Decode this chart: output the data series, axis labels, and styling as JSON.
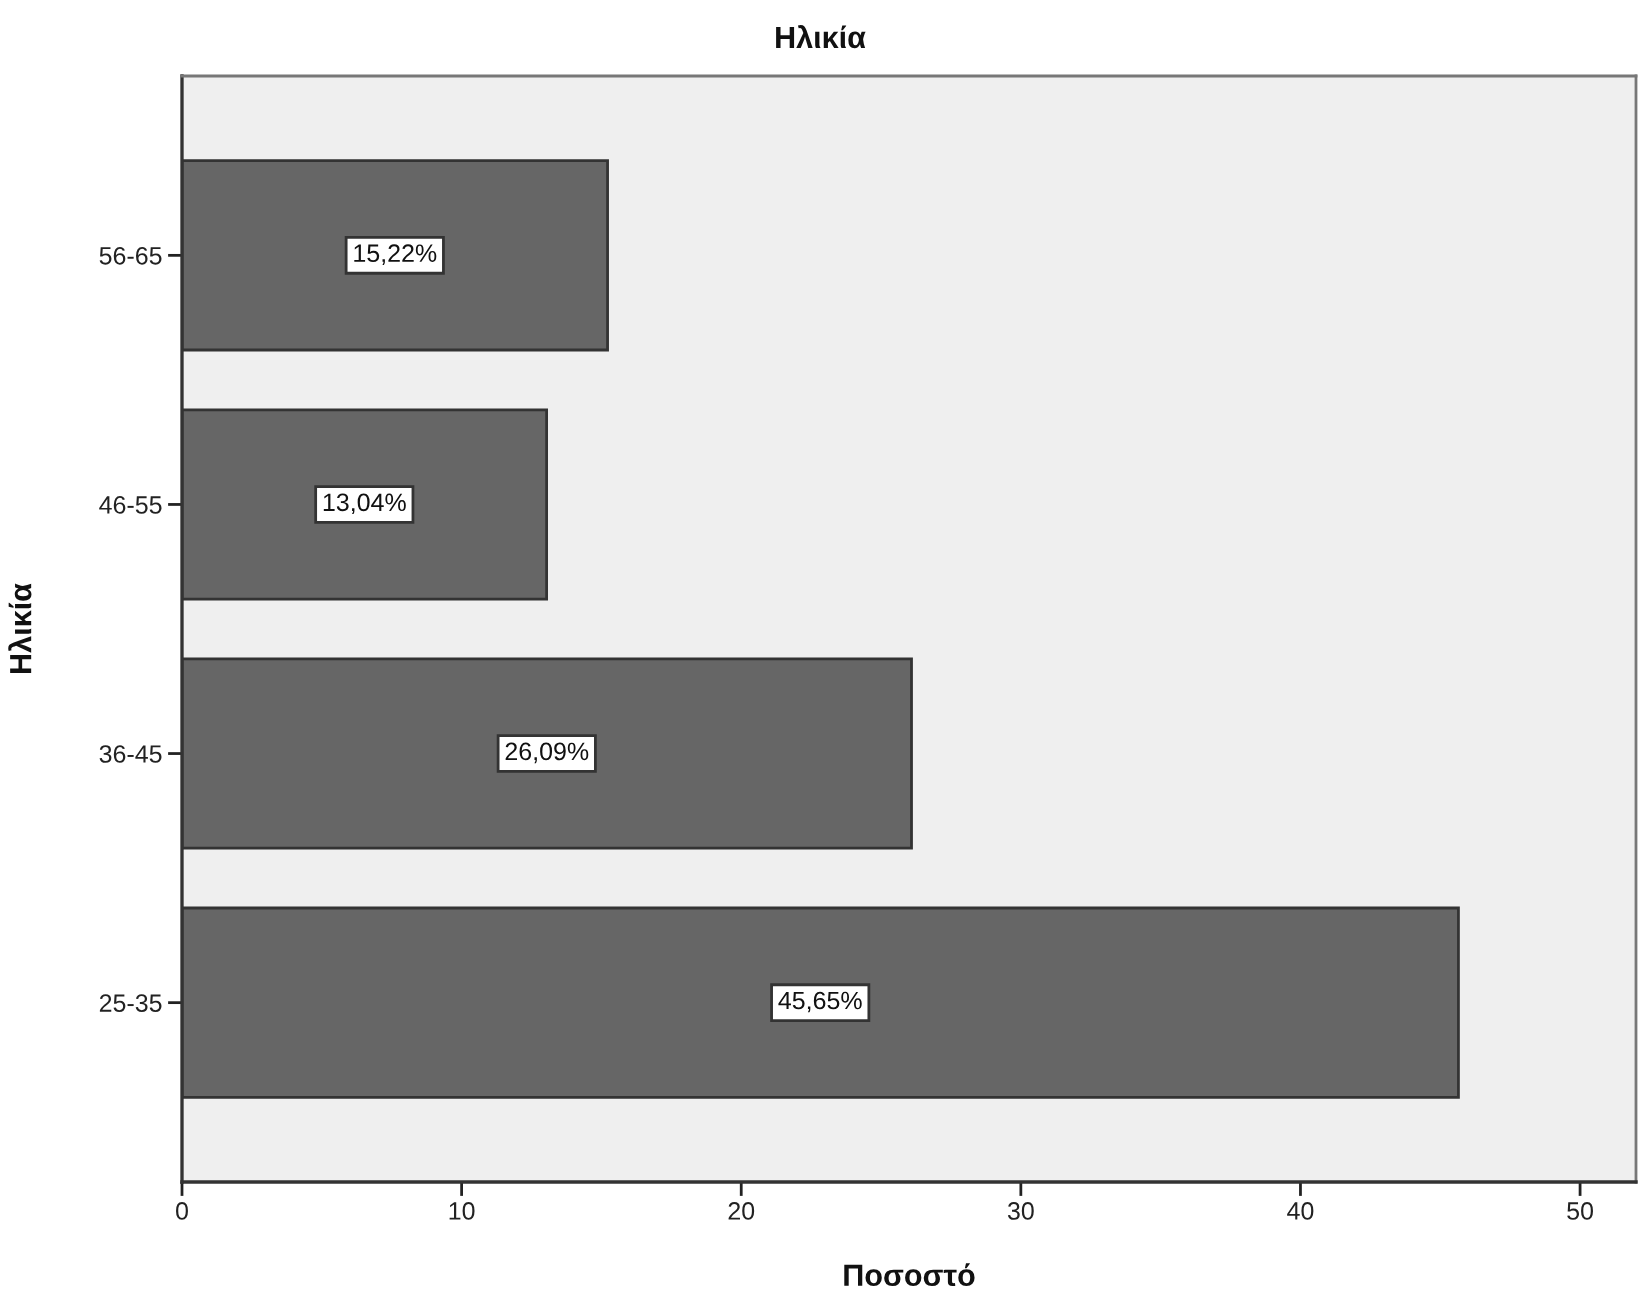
{
  "chart_data": {
    "type": "bar",
    "orientation": "horizontal",
    "title": "Ηλικία",
    "xlabel": "Ποσοστό",
    "ylabel": "Ηλικία",
    "categories": [
      "56-65",
      "46-55",
      "36-45",
      "25-35"
    ],
    "values": [
      15.22,
      13.04,
      26.09,
      45.65
    ],
    "value_labels": [
      "15,22%",
      "13,04%",
      "26,09%",
      "45,65%"
    ],
    "color": "#666666",
    "xlim": [
      0,
      52
    ],
    "xticks": [
      0,
      10,
      20,
      30,
      40,
      50
    ]
  }
}
